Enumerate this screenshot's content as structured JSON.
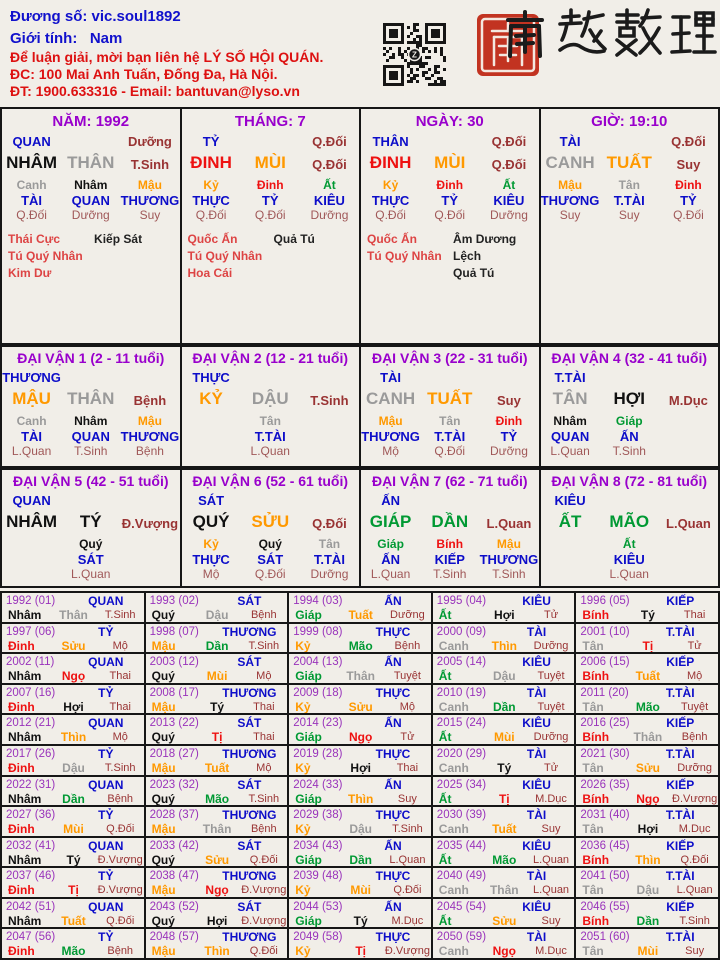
{
  "palette": {
    "background": "#f1eee8",
    "blue": "#0d0dc9",
    "purple_title": "#9900cc",
    "purple_year": "#9933bb",
    "red_text": "#dd1111",
    "header_blue": "#1111cc",
    "maroon_stage": "#993333",
    "hidden_stage": "#a05858",
    "star_red": "#dd4444",
    "water_black": "#111111",
    "metal_gray": "#9a9a9a",
    "earth_orange": "#ff9900",
    "fire_red": "#ee1111",
    "wood_green": "#009933",
    "seal_red": "#c23321",
    "border": "#161616"
  },
  "element_colors": {
    "nhâm": "w",
    "quý": "w",
    "giáp": "g",
    "ất": "g",
    "bính": "f",
    "đinh": "f",
    "mậu": "e",
    "kỷ": "e",
    "canh": "m",
    "tân": "m",
    "tý": "w",
    "sửu": "e",
    "dần": "g",
    "mão": "g",
    "thìn": "e",
    "tị": "f",
    "ngọ": "f",
    "mùi": "e",
    "thân": "m",
    "dậu": "m",
    "tuất": "e",
    "hợi": "w"
  },
  "header": {
    "line1": "Đương số: vic.soul1892",
    "line2": "Giới tính:   Nam",
    "line3": "Để luận giải, mời bạn liên hệ LÝ SỐ HỘI QUÁN.",
    "line4": "ĐC: 100 Mai Anh Tuấn, Đống Đa, Hà Nội.",
    "line5": "ĐT: 1900.633316 - Email: bantuvan@lyso.vn",
    "calligraphy": "南越數理"
  },
  "pillars": [
    {
      "id": "nam",
      "title": "NĂM: 1992",
      "god": "QUAN",
      "god_stage": "Dưỡng",
      "stem": "NHÂM",
      "branch": "THÂN",
      "stage": "T.Sinh",
      "hidden": [
        [
          "Canh",
          "TÀI",
          "Q.Đối"
        ],
        [
          "Nhâm",
          "QUAN",
          "Dưỡng"
        ],
        [
          "Mậu",
          "THƯƠNG",
          "Suy"
        ]
      ],
      "stars_red": [
        "Thái Cực",
        "Tú Quý Nhân",
        "Kim Dư"
      ],
      "stars_black": [
        "Kiếp Sát"
      ]
    },
    {
      "id": "thang",
      "title": "THÁNG: 7",
      "god": "TỶ",
      "god_stage": "Q.Đối",
      "stem": "ĐINH",
      "branch": "MÙI",
      "stage": "Q.Đối",
      "hidden": [
        [
          "Kỷ",
          "THỰC",
          "Q.Đối"
        ],
        [
          "Đinh",
          "TỶ",
          "Q.Đối"
        ],
        [
          "Ất",
          "KIÊU",
          "Dưỡng"
        ]
      ],
      "stars_red": [
        "Quốc Ấn",
        "Tú Quý Nhân",
        "Hoa Cái"
      ],
      "stars_black": [
        "Quả Tú"
      ]
    },
    {
      "id": "ngay",
      "title": "NGÀY: 30",
      "god": "THÂN",
      "god_stage": "Q.Đối",
      "stem": "ĐINH",
      "branch": "MÙI",
      "stage": "Q.Đối",
      "hidden": [
        [
          "Kỷ",
          "THỰC",
          "Q.Đối"
        ],
        [
          "Đinh",
          "TỶ",
          "Q.Đối"
        ],
        [
          "Ất",
          "KIÊU",
          "Dưỡng"
        ]
      ],
      "stars_red": [
        "Quốc Ấn",
        "Tú Quý Nhân"
      ],
      "stars_black": [
        "Âm Dương Lệch",
        "Quả Tú"
      ]
    },
    {
      "id": "gio",
      "title": "GIỜ: 19:10",
      "god": "TÀI",
      "god_stage": "Q.Đối",
      "stem": "CANH",
      "branch": "TUẤT",
      "stage": "Suy",
      "hidden": [
        [
          "Mậu",
          "THƯƠNG",
          "Suy"
        ],
        [
          "Tân",
          "T.TÀI",
          "Suy"
        ],
        [
          "Đinh",
          "TỶ",
          "Q.Đối"
        ]
      ],
      "stars_red": [],
      "stars_black": []
    }
  ],
  "daivan": [
    {
      "title": "ĐẠI VẬN 1 (2 - 11 tuổi)",
      "god": "THƯƠNG",
      "stem": "MẬU",
      "branch": "THÂN",
      "stage": "Bệnh",
      "hidden": [
        [
          "Canh",
          "TÀI",
          "L.Quan"
        ],
        [
          "Nhâm",
          "QUAN",
          "T.Sinh"
        ],
        [
          "Mậu",
          "THƯƠNG",
          "Bệnh"
        ]
      ]
    },
    {
      "title": "ĐẠI VẬN 2 (12 - 21 tuổi)",
      "god": "THỰC",
      "stem": "KỶ",
      "branch": "DẬU",
      "stage": "T.Sinh",
      "hidden": [
        null,
        [
          "Tân",
          "T.TÀI",
          "L.Quan"
        ],
        null
      ]
    },
    {
      "title": "ĐẠI VẬN 3 (22 - 31 tuổi)",
      "god": "TÀI",
      "stem": "CANH",
      "branch": "TUẤT",
      "stage": "Suy",
      "hidden": [
        [
          "Mậu",
          "THƯƠNG",
          "Mộ"
        ],
        [
          "Tân",
          "T.TÀI",
          "Q.Đối"
        ],
        [
          "Đinh",
          "TỶ",
          "Dưỡng"
        ]
      ]
    },
    {
      "title": "ĐẠI VẬN 4 (32 - 41 tuổi)",
      "god": "T.TÀI",
      "stem": "TÂN",
      "branch": "HỢI",
      "stage": "M.Dục",
      "hidden": [
        [
          "Nhâm",
          "QUAN",
          "L.Quan"
        ],
        [
          "Giáp",
          "ẤN",
          "T.Sinh"
        ],
        null
      ]
    },
    {
      "title": "ĐẠI VẬN 5 (42 - 51 tuổi)",
      "god": "QUAN",
      "stem": "NHÂM",
      "branch": "TÝ",
      "stage": "Đ.Vượng",
      "hidden": [
        null,
        [
          "Quý",
          "SÁT",
          "L.Quan"
        ],
        null
      ]
    },
    {
      "title": "ĐẠI VẬN 6 (52 - 61 tuổi)",
      "god": "SÁT",
      "stem": "QUÝ",
      "branch": "SỬU",
      "stage": "Q.Đối",
      "hidden": [
        [
          "Kỷ",
          "THỰC",
          "Mộ"
        ],
        [
          "Quý",
          "SÁT",
          "Q.Đối"
        ],
        [
          "Tân",
          "T.TÀI",
          "Dưỡng"
        ]
      ]
    },
    {
      "title": "ĐẠI VẬN 7 (62 - 71 tuổi)",
      "god": "ẤN",
      "stem": "GIÁP",
      "branch": "DẦN",
      "stage": "L.Quan",
      "hidden": [
        [
          "Giáp",
          "ẤN",
          "L.Quan"
        ],
        [
          "Bính",
          "KIẾP",
          "T.Sinh"
        ],
        [
          "Mậu",
          "THƯƠNG",
          "T.Sinh"
        ]
      ]
    },
    {
      "title": "ĐẠI VẬN 8 (72 - 81 tuổi)",
      "god": "KIÊU",
      "stem": "ẤT",
      "branch": "MÃO",
      "stage": "L.Quan",
      "hidden": [
        null,
        [
          "Ất",
          "KIÊU",
          "L.Quan"
        ],
        null
      ]
    }
  ],
  "years": [
    [
      "1992 (01)",
      "QUAN",
      "Nhâm",
      "Thân",
      "T.Sinh"
    ],
    [
      "1993 (02)",
      "SÁT",
      "Quý",
      "Dậu",
      "Bệnh"
    ],
    [
      "1994 (03)",
      "ẤN",
      "Giáp",
      "Tuất",
      "Dưỡng"
    ],
    [
      "1995 (04)",
      "KIÊU",
      "Ất",
      "Hợi",
      "Tử"
    ],
    [
      "1996 (05)",
      "KIẾP",
      "Bính",
      "Tý",
      "Thai"
    ],
    [
      "1997 (06)",
      "TỶ",
      "Đinh",
      "Sửu",
      "Mộ"
    ],
    [
      "1998 (07)",
      "THƯƠNG",
      "Mậu",
      "Dần",
      "T.Sinh"
    ],
    [
      "1999 (08)",
      "THỰC",
      "Kỷ",
      "Mão",
      "Bệnh"
    ],
    [
      "2000 (09)",
      "TÀI",
      "Canh",
      "Thìn",
      "Dưỡng"
    ],
    [
      "2001 (10)",
      "T.TÀI",
      "Tân",
      "Tị",
      "Tử"
    ],
    [
      "2002 (11)",
      "QUAN",
      "Nhâm",
      "Ngọ",
      "Thai"
    ],
    [
      "2003 (12)",
      "SÁT",
      "Quý",
      "Mùi",
      "Mộ"
    ],
    [
      "2004 (13)",
      "ẤN",
      "Giáp",
      "Thân",
      "Tuyệt"
    ],
    [
      "2005 (14)",
      "KIÊU",
      "Ất",
      "Dậu",
      "Tuyệt"
    ],
    [
      "2006 (15)",
      "KIẾP",
      "Bính",
      "Tuất",
      "Mộ"
    ],
    [
      "2007 (16)",
      "TỶ",
      "Đinh",
      "Hợi",
      "Thai"
    ],
    [
      "2008 (17)",
      "THƯƠNG",
      "Mậu",
      "Tý",
      "Thai"
    ],
    [
      "2009 (18)",
      "THỰC",
      "Kỷ",
      "Sửu",
      "Mộ"
    ],
    [
      "2010 (19)",
      "TÀI",
      "Canh",
      "Dần",
      "Tuyệt"
    ],
    [
      "2011 (20)",
      "T.TÀI",
      "Tân",
      "Mão",
      "Tuyệt"
    ],
    [
      "2012 (21)",
      "QUAN",
      "Nhâm",
      "Thìn",
      "Mộ"
    ],
    [
      "2013 (22)",
      "SÁT",
      "Quý",
      "Tị",
      "Thai"
    ],
    [
      "2014 (23)",
      "ẤN",
      "Giáp",
      "Ngọ",
      "Tử"
    ],
    [
      "2015 (24)",
      "KIÊU",
      "Ất",
      "Mùi",
      "Dưỡng"
    ],
    [
      "2016 (25)",
      "KIẾP",
      "Bính",
      "Thân",
      "Bệnh"
    ],
    [
      "2017 (26)",
      "TỶ",
      "Đinh",
      "Dậu",
      "T.Sinh"
    ],
    [
      "2018 (27)",
      "THƯƠNG",
      "Mậu",
      "Tuất",
      "Mộ"
    ],
    [
      "2019 (28)",
      "THỰC",
      "Kỷ",
      "Hợi",
      "Thai"
    ],
    [
      "2020 (29)",
      "TÀI",
      "Canh",
      "Tý",
      "Tử"
    ],
    [
      "2021 (30)",
      "T.TÀI",
      "Tân",
      "Sửu",
      "Dưỡng"
    ],
    [
      "2022 (31)",
      "QUAN",
      "Nhâm",
      "Dần",
      "Bệnh"
    ],
    [
      "2023 (32)",
      "SÁT",
      "Quý",
      "Mão",
      "T.Sinh"
    ],
    [
      "2024 (33)",
      "ẤN",
      "Giáp",
      "Thìn",
      "Suy"
    ],
    [
      "2025 (34)",
      "KIÊU",
      "Ất",
      "Tị",
      "M.Dục"
    ],
    [
      "2026 (35)",
      "KIẾP",
      "Bính",
      "Ngọ",
      "Đ.Vượng"
    ],
    [
      "2027 (36)",
      "TỶ",
      "Đinh",
      "Mùi",
      "Q.Đối"
    ],
    [
      "2028 (37)",
      "THƯƠNG",
      "Mậu",
      "Thân",
      "Bệnh"
    ],
    [
      "2029 (38)",
      "THỰC",
      "Kỷ",
      "Dậu",
      "T.Sinh"
    ],
    [
      "2030 (39)",
      "TÀI",
      "Canh",
      "Tuất",
      "Suy"
    ],
    [
      "2031 (40)",
      "T.TÀI",
      "Tân",
      "Hợi",
      "M.Dục"
    ],
    [
      "2032 (41)",
      "QUAN",
      "Nhâm",
      "Tý",
      "Đ.Vượng"
    ],
    [
      "2033 (42)",
      "SÁT",
      "Quý",
      "Sửu",
      "Q.Đối"
    ],
    [
      "2034 (43)",
      "ẤN",
      "Giáp",
      "Dần",
      "L.Quan"
    ],
    [
      "2035 (44)",
      "KIÊU",
      "Ất",
      "Mão",
      "L.Quan"
    ],
    [
      "2036 (45)",
      "KIẾP",
      "Bính",
      "Thìn",
      "Q.Đối"
    ],
    [
      "2037 (46)",
      "TỶ",
      "Đinh",
      "Tị",
      "Đ.Vượng"
    ],
    [
      "2038 (47)",
      "THƯƠNG",
      "Mậu",
      "Ngọ",
      "Đ.Vượng"
    ],
    [
      "2039 (48)",
      "THỰC",
      "Kỷ",
      "Mùi",
      "Q.Đối"
    ],
    [
      "2040 (49)",
      "TÀI",
      "Canh",
      "Thân",
      "L.Quan"
    ],
    [
      "2041 (50)",
      "T.TÀI",
      "Tân",
      "Dậu",
      "L.Quan"
    ],
    [
      "2042 (51)",
      "QUAN",
      "Nhâm",
      "Tuất",
      "Q.Đối"
    ],
    [
      "2043 (52)",
      "SÁT",
      "Quý",
      "Hợi",
      "Đ.Vượng"
    ],
    [
      "2044 (53)",
      "ẤN",
      "Giáp",
      "Tý",
      "M.Dục"
    ],
    [
      "2045 (54)",
      "KIÊU",
      "Ất",
      "Sửu",
      "Suy"
    ],
    [
      "2046 (55)",
      "KIẾP",
      "Bính",
      "Dần",
      "T.Sinh"
    ],
    [
      "2047 (56)",
      "TỶ",
      "Đinh",
      "Mão",
      "Bệnh"
    ],
    [
      "2048 (57)",
      "THƯƠNG",
      "Mậu",
      "Thìn",
      "Q.Đối"
    ],
    [
      "2049 (58)",
      "THỰC",
      "Kỷ",
      "Tị",
      "Đ.Vượng"
    ],
    [
      "2050 (59)",
      "TÀI",
      "Canh",
      "Ngọ",
      "M.Dục"
    ],
    [
      "2051 (60)",
      "T.TÀI",
      "Tân",
      "Mùi",
      "Suy"
    ]
  ]
}
